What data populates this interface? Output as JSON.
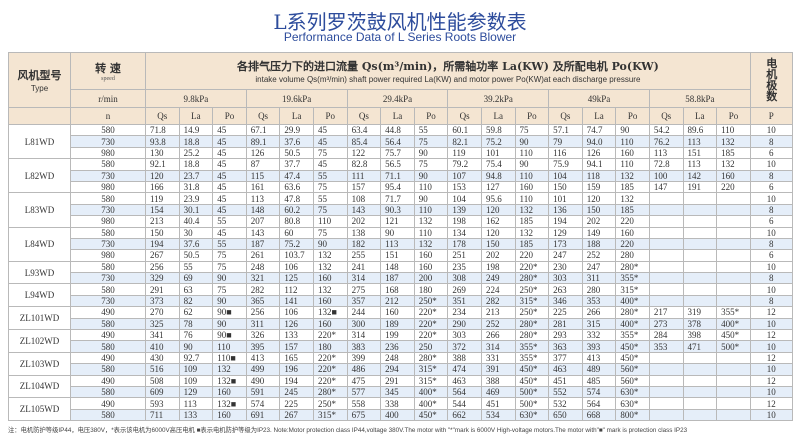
{
  "title": "L系列罗茨鼓风机性能参数表",
  "subtitle": "Performance Data of L Series Roots Blower",
  "header": {
    "type_cn": "风机型号",
    "type_en": "Type",
    "speed_cn": "转 速",
    "speed_en": "speed",
    "speed_unit": "r/min",
    "speed_symbol": "n",
    "desc_cn": "各排气压力下的进口流量 Qs(m³/min)，所需轴功率 La(KW) 及所配电机 Po(KW)",
    "desc_en": "intake volume Qs(m³/min) shaft power required La(KW) and motor power Po(KW)at each discharge pressure",
    "poles_cn": "电机极数",
    "poles_symbol": "P",
    "pressures": [
      "9.8kPa",
      "19.6kPa",
      "29.4kPa",
      "39.2kPa",
      "49kPa",
      "58.8kPa"
    ],
    "sub_cols": [
      "Qs",
      "La",
      "Po"
    ]
  },
  "models": [
    {
      "type": "L81WD",
      "rows": [
        {
          "n": "580",
          "v": [
            "71.8",
            "14.9",
            "45",
            "67.1",
            "29.9",
            "45",
            "63.4",
            "44.8",
            "55",
            "60.1",
            "59.8",
            "75",
            "57.1",
            "74.7",
            "90",
            "54.2",
            "89.6",
            "110"
          ],
          "p": "10"
        },
        {
          "n": "730",
          "v": [
            "93.8",
            "18.8",
            "45",
            "89.1",
            "37.6",
            "45",
            "85.4",
            "56.4",
            "75",
            "82.1",
            "75.2",
            "90",
            "79",
            "94.0",
            "110",
            "76.2",
            "113",
            "132"
          ],
          "p": "8"
        },
        {
          "n": "980",
          "v": [
            "130",
            "25.2",
            "45",
            "126",
            "50.5",
            "75",
            "122",
            "75.7",
            "90",
            "119",
            "101",
            "110",
            "116",
            "126",
            "160",
            "113",
            "151",
            "185"
          ],
          "p": "6"
        }
      ]
    },
    {
      "type": "L82WD",
      "rows": [
        {
          "n": "580",
          "v": [
            "92.1",
            "18.8",
            "45",
            "87",
            "37.7",
            "45",
            "82.8",
            "56.5",
            "75",
            "79.2",
            "75.4",
            "90",
            "75.9",
            "94.1",
            "110",
            "72.8",
            "113",
            "132"
          ],
          "p": "10"
        },
        {
          "n": "730",
          "v": [
            "120",
            "23.7",
            "45",
            "115",
            "47.4",
            "55",
            "111",
            "71.1",
            "90",
            "107",
            "94.8",
            "110",
            "104",
            "118",
            "132",
            "100",
            "142",
            "160"
          ],
          "p": "8"
        },
        {
          "n": "980",
          "v": [
            "166",
            "31.8",
            "45",
            "161",
            "63.6",
            "75",
            "157",
            "95.4",
            "110",
            "153",
            "127",
            "160",
            "150",
            "159",
            "185",
            "147",
            "191",
            "220"
          ],
          "p": "6"
        }
      ]
    },
    {
      "type": "L83WD",
      "rows": [
        {
          "n": "580",
          "v": [
            "119",
            "23.9",
            "45",
            "113",
            "47.8",
            "55",
            "108",
            "71.7",
            "90",
            "104",
            "95.6",
            "110",
            "101",
            "120",
            "132",
            "",
            "",
            ""
          ],
          "p": "10"
        },
        {
          "n": "730",
          "v": [
            "154",
            "30.1",
            "45",
            "148",
            "60.2",
            "75",
            "143",
            "90.3",
            "110",
            "139",
            "120",
            "132",
            "136",
            "150",
            "185",
            "",
            "",
            ""
          ],
          "p": "8"
        },
        {
          "n": "980",
          "v": [
            "213",
            "40.4",
            "55",
            "207",
            "80.8",
            "110",
            "202",
            "121",
            "132",
            "198",
            "162",
            "185",
            "194",
            "202",
            "220",
            "",
            "",
            ""
          ],
          "p": "6"
        }
      ]
    },
    {
      "type": "L84WD",
      "rows": [
        {
          "n": "580",
          "v": [
            "150",
            "30",
            "45",
            "143",
            "60",
            "75",
            "138",
            "90",
            "110",
            "134",
            "120",
            "132",
            "129",
            "149",
            "160",
            "",
            "",
            ""
          ],
          "p": "10"
        },
        {
          "n": "730",
          "v": [
            "194",
            "37.6",
            "55",
            "187",
            "75.2",
            "90",
            "182",
            "113",
            "132",
            "178",
            "150",
            "185",
            "173",
            "188",
            "220",
            "",
            "",
            ""
          ],
          "p": "8"
        },
        {
          "n": "980",
          "v": [
            "267",
            "50.5",
            "75",
            "261",
            "103.7",
            "132",
            "255",
            "151",
            "160",
            "251",
            "202",
            "220",
            "247",
            "252",
            "280",
            "",
            "",
            ""
          ],
          "p": "6"
        }
      ]
    },
    {
      "type": "L93WD",
      "rows": [
        {
          "n": "580",
          "v": [
            "256",
            "55",
            "75",
            "248",
            "106",
            "132",
            "241",
            "148",
            "160",
            "235",
            "198",
            "220*",
            "230",
            "247",
            "280*",
            "",
            "",
            ""
          ],
          "p": "10"
        },
        {
          "n": "730",
          "v": [
            "329",
            "69",
            "90",
            "321",
            "125",
            "160",
            "314",
            "187",
            "200",
            "308",
            "249",
            "280*",
            "303",
            "311",
            "355*",
            "",
            "",
            ""
          ],
          "p": "8"
        }
      ]
    },
    {
      "type": "L94WD",
      "rows": [
        {
          "n": "580",
          "v": [
            "291",
            "63",
            "75",
            "282",
            "112",
            "132",
            "275",
            "168",
            "180",
            "269",
            "224",
            "250*",
            "263",
            "280",
            "315*",
            "",
            "",
            ""
          ],
          "p": "10"
        },
        {
          "n": "730",
          "v": [
            "373",
            "82",
            "90",
            "365",
            "141",
            "160",
            "357",
            "212",
            "250*",
            "351",
            "282",
            "315*",
            "346",
            "353",
            "400*",
            "",
            "",
            ""
          ],
          "p": "8"
        }
      ]
    },
    {
      "type": "ZL101WD",
      "rows": [
        {
          "n": "490",
          "v": [
            "270",
            "62",
            "90■",
            "256",
            "106",
            "132■",
            "244",
            "160",
            "220*",
            "234",
            "213",
            "250*",
            "225",
            "266",
            "280*",
            "217",
            "319",
            "355*"
          ],
          "p": "12"
        },
        {
          "n": "580",
          "v": [
            "325",
            "78",
            "90",
            "311",
            "126",
            "160",
            "300",
            "189",
            "220*",
            "290",
            "252",
            "280*",
            "281",
            "315",
            "400*",
            "273",
            "378",
            "400*"
          ],
          "p": "10"
        }
      ]
    },
    {
      "type": "ZL102WD",
      "rows": [
        {
          "n": "490",
          "v": [
            "341",
            "76",
            "90■",
            "326",
            "133",
            "220*",
            "314",
            "199",
            "220*",
            "303",
            "266",
            "280*",
            "293",
            "332",
            "355*",
            "284",
            "398",
            "450*"
          ],
          "p": "12"
        },
        {
          "n": "580",
          "v": [
            "410",
            "90",
            "110",
            "395",
            "157",
            "180",
            "383",
            "236",
            "250",
            "372",
            "314",
            "355*",
            "363",
            "393",
            "450*",
            "353",
            "471",
            "500*"
          ],
          "p": "10"
        }
      ]
    },
    {
      "type": "ZL103WD",
      "rows": [
        {
          "n": "490",
          "v": [
            "430",
            "92.7",
            "110■",
            "413",
            "165",
            "220*",
            "399",
            "248",
            "280*",
            "388",
            "331",
            "355*",
            "377",
            "413",
            "450*",
            "",
            "",
            ""
          ],
          "p": "12"
        },
        {
          "n": "580",
          "v": [
            "516",
            "109",
            "132",
            "499",
            "196",
            "220*",
            "486",
            "294",
            "315*",
            "474",
            "391",
            "450*",
            "463",
            "489",
            "560*",
            "",
            "",
            ""
          ],
          "p": "10"
        }
      ]
    },
    {
      "type": "ZL104WD",
      "rows": [
        {
          "n": "490",
          "v": [
            "508",
            "109",
            "132■",
            "490",
            "194",
            "220*",
            "475",
            "291",
            "315*",
            "463",
            "388",
            "450*",
            "451",
            "485",
            "560*",
            "",
            "",
            ""
          ],
          "p": "12"
        },
        {
          "n": "580",
          "v": [
            "609",
            "129",
            "160",
            "591",
            "245",
            "280*",
            "577",
            "345",
            "400*",
            "564",
            "469",
            "500*",
            "552",
            "574",
            "630*",
            "",
            "",
            ""
          ],
          "p": "10"
        }
      ]
    },
    {
      "type": "ZL105WD",
      "rows": [
        {
          "n": "490",
          "v": [
            "593",
            "113",
            "132■",
            "574",
            "225",
            "250*",
            "558",
            "338",
            "400*",
            "544",
            "451",
            "500*",
            "532",
            "564",
            "630*",
            "",
            "",
            ""
          ],
          "p": "12"
        },
        {
          "n": "580",
          "v": [
            "711",
            "133",
            "160",
            "691",
            "267",
            "315*",
            "675",
            "400",
            "450*",
            "662",
            "534",
            "630*",
            "650",
            "668",
            "800*",
            "",
            "",
            ""
          ],
          "p": "10"
        }
      ]
    }
  ],
  "note": "注：电机防护等级IP44，电压380V，*表示该电机为6000V高压电机 ■表示电机防护等级为IP23. Note:Motor protection class IP44,voltage 380V.The motor with \"*\"mark is 6000V High-voltage motors.The motor with\"■\" mark is protection class IP23",
  "colors": {
    "title": "#2d4c9c",
    "header_bg": "#f4e5d2",
    "stripe": "#e5eef9"
  }
}
